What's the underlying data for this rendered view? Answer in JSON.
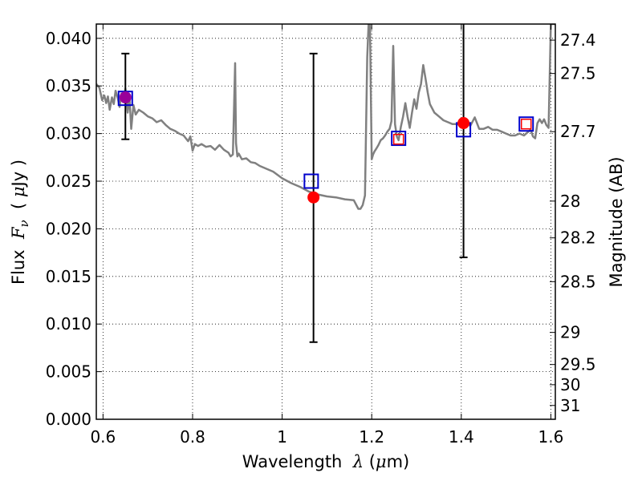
{
  "chart_data": {
    "type": "line",
    "title": "",
    "xlabel": "Wavelength  λ (μm)",
    "xlabel_parts": {
      "prefix": "Wavelength  ",
      "symbol": "λ",
      "open": " (",
      "unit_symbol": "μ",
      "unit_rest": "m)"
    },
    "ylabel": "Flux  F_ν  ( μJy )",
    "ylabel_parts": {
      "prefix": "Flux  ",
      "symbol": "F",
      "subscript": "ν",
      "open": "  ( ",
      "unit_symbol": "μ",
      "unit_rest": "Jy )"
    },
    "y2label": "Magnitude (AB)",
    "xlim": [
      0.585,
      1.61
    ],
    "ylim": [
      0.0,
      0.0415
    ],
    "grid": true,
    "grid_style": "dotted",
    "legend": "none",
    "x_ticks": [
      {
        "value": 0.6,
        "label": "0.6"
      },
      {
        "value": 0.8,
        "label": "0.8"
      },
      {
        "value": 1.0,
        "label": "1"
      },
      {
        "value": 1.2,
        "label": "1.2"
      },
      {
        "value": 1.4,
        "label": "1.4"
      },
      {
        "value": 1.6,
        "label": "1.6"
      }
    ],
    "y_ticks": [
      {
        "value": 0.0,
        "label": "0.000"
      },
      {
        "value": 0.005,
        "label": "0.005"
      },
      {
        "value": 0.01,
        "label": "0.010"
      },
      {
        "value": 0.015,
        "label": "0.015"
      },
      {
        "value": 0.02,
        "label": "0.020"
      },
      {
        "value": 0.025,
        "label": "0.025"
      },
      {
        "value": 0.03,
        "label": "0.030"
      },
      {
        "value": 0.035,
        "label": "0.035"
      },
      {
        "value": 0.04,
        "label": "0.040"
      }
    ],
    "y2_ticks": [
      {
        "label": "27.4",
        "flux": 0.03981
      },
      {
        "label": "27.5",
        "flux": 0.03631
      },
      {
        "label": "27.7",
        "flux": 0.0302
      },
      {
        "label": "28",
        "flux": 0.02291
      },
      {
        "label": "28.2",
        "flux": 0.01905
      },
      {
        "label": "28.5",
        "flux": 0.01445
      },
      {
        "label": "29",
        "flux": 0.00912
      },
      {
        "label": "29.5",
        "flux": 0.00575
      },
      {
        "label": "30",
        "flux": 0.00363
      },
      {
        "label": "31",
        "flux": 0.00145
      }
    ],
    "colors": {
      "model": "#808080",
      "observed": "#ff0000",
      "model_photometry": "#0000cc",
      "model_photometry_inner": "#ff0000",
      "error_bar": "#000000",
      "overlap": "#990099"
    },
    "series": [
      {
        "kind": "model_spectrum",
        "x": [
          0.585,
          0.592,
          0.598,
          0.603,
          0.607,
          0.611,
          0.615,
          0.62,
          0.624,
          0.628,
          0.633,
          0.637,
          0.641,
          0.645,
          0.65,
          0.655,
          0.659,
          0.663,
          0.668,
          0.673,
          0.68,
          0.69,
          0.7,
          0.71,
          0.72,
          0.73,
          0.74,
          0.75,
          0.76,
          0.77,
          0.78,
          0.79,
          0.795,
          0.8,
          0.805,
          0.812,
          0.82,
          0.83,
          0.84,
          0.85,
          0.86,
          0.87,
          0.88,
          0.885,
          0.89,
          0.895,
          0.897,
          0.9,
          0.903,
          0.91,
          0.92,
          0.93,
          0.94,
          0.95,
          0.96,
          0.98,
          1.0,
          1.02,
          1.04,
          1.06,
          1.08,
          1.1,
          1.12,
          1.14,
          1.16,
          1.17,
          1.175,
          1.18,
          1.185,
          1.19,
          1.193,
          1.196,
          1.2,
          1.203,
          1.206,
          1.21,
          1.215,
          1.22,
          1.225,
          1.23,
          1.235,
          1.24,
          1.244,
          1.248,
          1.252,
          1.256,
          1.26,
          1.265,
          1.27,
          1.275,
          1.28,
          1.285,
          1.29,
          1.295,
          1.3,
          1.305,
          1.31,
          1.315,
          1.32,
          1.325,
          1.33,
          1.34,
          1.35,
          1.36,
          1.37,
          1.38,
          1.39,
          1.4,
          1.41,
          1.42,
          1.43,
          1.44,
          1.45,
          1.46,
          1.47,
          1.48,
          1.49,
          1.5,
          1.51,
          1.52,
          1.53,
          1.54,
          1.55,
          1.555,
          1.56,
          1.565,
          1.57,
          1.575,
          1.58,
          1.585,
          1.59,
          1.595,
          1.6,
          1.605,
          1.61
        ],
        "y": [
          0.0352,
          0.0348,
          0.0335,
          0.034,
          0.0332,
          0.0339,
          0.0325,
          0.0338,
          0.0331,
          0.0345,
          0.0337,
          0.0328,
          0.0342,
          0.0333,
          0.0347,
          0.0322,
          0.0339,
          0.0305,
          0.033,
          0.032,
          0.0325,
          0.0322,
          0.0318,
          0.0316,
          0.0312,
          0.0314,
          0.0309,
          0.0305,
          0.0303,
          0.03,
          0.0298,
          0.0292,
          0.0297,
          0.0282,
          0.0289,
          0.0287,
          0.0289,
          0.0286,
          0.0287,
          0.0283,
          0.0288,
          0.0283,
          0.028,
          0.0276,
          0.0278,
          0.0374,
          0.029,
          0.0276,
          0.0279,
          0.0273,
          0.0274,
          0.027,
          0.0269,
          0.0266,
          0.0264,
          0.026,
          0.0253,
          0.0248,
          0.0244,
          0.0239,
          0.0236,
          0.0234,
          0.0233,
          0.0231,
          0.023,
          0.0221,
          0.0221,
          0.0225,
          0.0235,
          0.038,
          0.0415,
          0.0415,
          0.0273,
          0.0278,
          0.0281,
          0.0284,
          0.0288,
          0.0293,
          0.0295,
          0.0298,
          0.0302,
          0.0305,
          0.0313,
          0.0392,
          0.031,
          0.0297,
          0.0293,
          0.0307,
          0.0318,
          0.0332,
          0.0318,
          0.0306,
          0.0322,
          0.0336,
          0.0326,
          0.0343,
          0.0352,
          0.0372,
          0.0358,
          0.0343,
          0.0331,
          0.0322,
          0.0318,
          0.0314,
          0.0312,
          0.031,
          0.031,
          0.0309,
          0.0313,
          0.0308,
          0.0317,
          0.0305,
          0.0305,
          0.0307,
          0.0304,
          0.0304,
          0.0302,
          0.03,
          0.0298,
          0.0298,
          0.03,
          0.0298,
          0.0302,
          0.0304,
          0.0297,
          0.0295,
          0.0311,
          0.0315,
          0.0311,
          0.0315,
          0.0309,
          0.0306,
          0.0415,
          0.0415,
          0.0415
        ]
      },
      {
        "kind": "model_photometry",
        "x": [
          0.65,
          1.065,
          1.26,
          1.405,
          1.545
        ],
        "y": [
          0.0337,
          0.025,
          0.0295,
          0.0304,
          0.031
        ]
      },
      {
        "kind": "observed_photometry",
        "x": [
          0.65,
          1.07,
          1.26,
          1.405,
          1.545
        ],
        "y": [
          0.0338,
          0.0233,
          0.0294,
          0.0311,
          0.031
        ],
        "yerr_low": [
          0.0294,
          0.0081,
          null,
          0.017,
          null
        ],
        "yerr_high": [
          0.0384,
          0.0384,
          null,
          0.0415,
          null
        ]
      }
    ]
  }
}
